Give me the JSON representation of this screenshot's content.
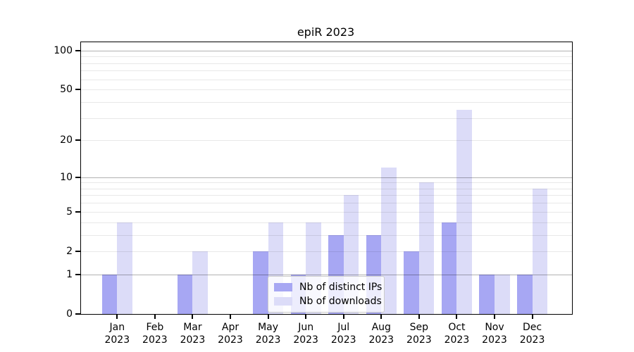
{
  "title": "epiR 2023",
  "chart_data": {
    "type": "bar",
    "title": "epiR 2023",
    "categories": [
      "Jan 2023",
      "Feb 2023",
      "Mar 2023",
      "Apr 2023",
      "May 2023",
      "Jun 2023",
      "Jul 2023",
      "Aug 2023",
      "Sep 2023",
      "Oct 2023",
      "Nov 2023",
      "Dec 2023"
    ],
    "series": [
      {
        "name": "Nb of distinct IPs",
        "color": "#a7a7f3",
        "values": [
          1,
          0,
          1,
          0,
          2,
          1,
          3,
          3,
          2,
          4,
          1,
          1
        ]
      },
      {
        "name": "Nb of downloads",
        "color": "#dcdcf8",
        "values": [
          4,
          0,
          2,
          0,
          4,
          4,
          7,
          12,
          9,
          35,
          1,
          8
        ]
      }
    ],
    "xlabel": "",
    "ylabel": "",
    "y_scale": "log10(1+x)",
    "ylim": [
      0,
      116
    ],
    "y_ticks": [
      0,
      1,
      2,
      5,
      10,
      20,
      50,
      100
    ],
    "y_major_gridlines": [
      1,
      10,
      100
    ],
    "y_minor_gridlines": [
      2,
      3,
      4,
      5,
      6,
      7,
      8,
      9,
      20,
      30,
      40,
      50,
      60,
      70,
      80,
      90
    ],
    "grid": true,
    "legend_position": "inside lower-center"
  },
  "colors": {
    "ip_bar": "#a7a7f3",
    "dl_bar": "#dcdcf8",
    "grid_minor": "rgba(0,0,0,0.09)",
    "grid_major": "rgba(0,0,0,0.30)",
    "axis": "#000000"
  }
}
